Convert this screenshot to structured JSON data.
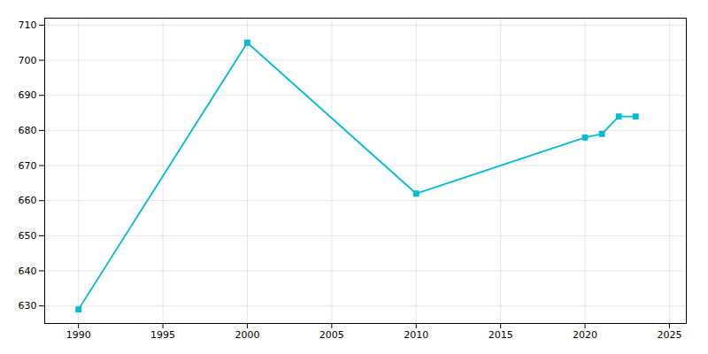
{
  "chart_data": {
    "type": "line",
    "x": [
      1990,
      2000,
      2010,
      2020,
      2021,
      2022,
      2023
    ],
    "values": [
      629,
      705,
      662,
      678,
      679,
      684,
      684
    ],
    "color": "#00BCD4",
    "marker": "square",
    "xlim": [
      1988,
      2026
    ],
    "ylim": [
      625,
      712
    ],
    "xticks": [
      1990,
      1995,
      2000,
      2005,
      2010,
      2015,
      2020,
      2025
    ],
    "yticks": [
      630,
      640,
      650,
      660,
      670,
      680,
      690,
      700,
      710
    ],
    "grid": true
  }
}
